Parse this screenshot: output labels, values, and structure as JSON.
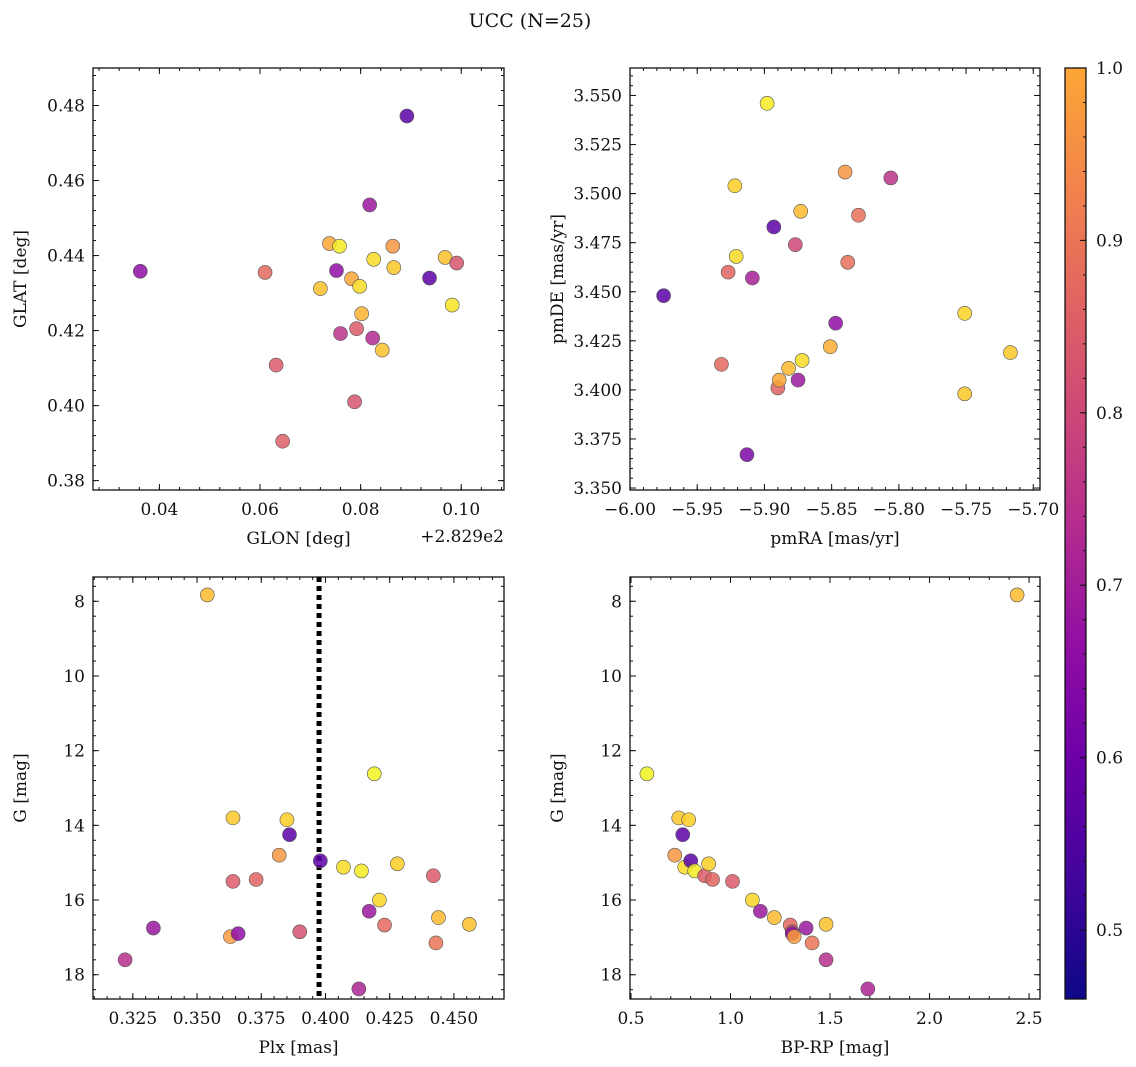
{
  "figure": {
    "title": "UCC (N=25)"
  },
  "colorbar": {
    "range": [
      0.46,
      1.0
    ],
    "ticks": [
      0.5,
      0.6,
      0.7,
      0.8,
      0.9,
      1.0
    ],
    "ticklabels": [
      "0.5",
      "0.6",
      "0.7",
      "0.8",
      "0.9",
      "1.0"
    ],
    "colormap": "plasma"
  },
  "chart_data": [
    {
      "type": "scatter",
      "xlabel": "GLON [deg]",
      "ylabel": "GLAT [deg]",
      "offset_text": "+2.829e2",
      "xlim": [
        0.0268,
        0.1085
      ],
      "ylim": [
        0.3775,
        0.49
      ],
      "xticks": [
        0.04,
        0.06,
        0.08,
        0.1
      ],
      "xticklabels": [
        "0.04",
        "0.06",
        "0.08",
        "0.10"
      ],
      "yticks": [
        0.38,
        0.4,
        0.42,
        0.44,
        0.46,
        0.48
      ],
      "yticklabels": [
        "0.38",
        "0.40",
        "0.42",
        "0.44",
        "0.46",
        "0.48"
      ],
      "points": [
        {
          "x": 0.0362,
          "y": 0.4358,
          "c": 0.58
        },
        {
          "x": 0.061,
          "y": 0.4355,
          "c": 0.77
        },
        {
          "x": 0.0632,
          "y": 0.4108,
          "c": 0.74
        },
        {
          "x": 0.0645,
          "y": 0.3905,
          "c": 0.75
        },
        {
          "x": 0.072,
          "y": 0.4312,
          "c": 0.92
        },
        {
          "x": 0.0738,
          "y": 0.4432,
          "c": 0.88
        },
        {
          "x": 0.0752,
          "y": 0.436,
          "c": 0.58
        },
        {
          "x": 0.0758,
          "y": 0.4425,
          "c": 0.98
        },
        {
          "x": 0.076,
          "y": 0.4192,
          "c": 0.66
        },
        {
          "x": 0.0782,
          "y": 0.4338,
          "c": 0.88
        },
        {
          "x": 0.0788,
          "y": 0.401,
          "c": 0.73
        },
        {
          "x": 0.0792,
          "y": 0.4205,
          "c": 0.74
        },
        {
          "x": 0.0798,
          "y": 0.4318,
          "c": 0.96
        },
        {
          "x": 0.0802,
          "y": 0.4245,
          "c": 0.9
        },
        {
          "x": 0.0818,
          "y": 0.4535,
          "c": 0.6
        },
        {
          "x": 0.0824,
          "y": 0.418,
          "c": 0.64
        },
        {
          "x": 0.0826,
          "y": 0.439,
          "c": 0.96
        },
        {
          "x": 0.0843,
          "y": 0.4148,
          "c": 0.92
        },
        {
          "x": 0.0864,
          "y": 0.4425,
          "c": 0.85
        },
        {
          "x": 0.0866,
          "y": 0.4368,
          "c": 0.93
        },
        {
          "x": 0.0892,
          "y": 0.4772,
          "c": 0.5
        },
        {
          "x": 0.0937,
          "y": 0.434,
          "c": 0.5
        },
        {
          "x": 0.0968,
          "y": 0.4395,
          "c": 0.92
        },
        {
          "x": 0.0982,
          "y": 0.4268,
          "c": 0.97
        },
        {
          "x": 0.0991,
          "y": 0.438,
          "c": 0.73
        }
      ]
    },
    {
      "type": "scatter",
      "xlabel": "pmRA [mas/yr]",
      "ylabel": "pmDE [mas/yr]",
      "xlim": [
        -6.0,
        -5.695
      ],
      "ylim": [
        3.349,
        3.564
      ],
      "xticks": [
        -6.0,
        -5.95,
        -5.9,
        -5.85,
        -5.8,
        -5.75,
        -5.7
      ],
      "xticklabels": [
        "−6.00",
        "−5.95",
        "−5.90",
        "−5.85",
        "−5.80",
        "−5.75",
        "−5.70"
      ],
      "yticks": [
        3.35,
        3.375,
        3.4,
        3.425,
        3.45,
        3.475,
        3.5,
        3.525,
        3.55
      ],
      "yticklabels": [
        "3.350",
        "3.375",
        "3.400",
        "3.425",
        "3.450",
        "3.475",
        "3.500",
        "3.525",
        "3.550"
      ],
      "points": [
        {
          "x": -5.975,
          "y": 3.448,
          "c": 0.5
        },
        {
          "x": -5.932,
          "y": 3.413,
          "c": 0.77
        },
        {
          "x": -5.927,
          "y": 3.46,
          "c": 0.76
        },
        {
          "x": -5.922,
          "y": 3.504,
          "c": 0.94
        },
        {
          "x": -5.921,
          "y": 3.468,
          "c": 0.96
        },
        {
          "x": -5.913,
          "y": 3.367,
          "c": 0.55
        },
        {
          "x": -5.909,
          "y": 3.457,
          "c": 0.62
        },
        {
          "x": -5.898,
          "y": 3.546,
          "c": 0.98
        },
        {
          "x": -5.893,
          "y": 3.483,
          "c": 0.5
        },
        {
          "x": -5.89,
          "y": 3.401,
          "c": 0.76
        },
        {
          "x": -5.889,
          "y": 3.405,
          "c": 0.88
        },
        {
          "x": -5.882,
          "y": 3.411,
          "c": 0.91
        },
        {
          "x": -5.877,
          "y": 3.474,
          "c": 0.7
        },
        {
          "x": -5.875,
          "y": 3.405,
          "c": 0.6
        },
        {
          "x": -5.873,
          "y": 3.491,
          "c": 0.91
        },
        {
          "x": -5.872,
          "y": 3.415,
          "c": 0.96
        },
        {
          "x": -5.851,
          "y": 3.422,
          "c": 0.89
        },
        {
          "x": -5.847,
          "y": 3.434,
          "c": 0.58
        },
        {
          "x": -5.84,
          "y": 3.511,
          "c": 0.85
        },
        {
          "x": -5.838,
          "y": 3.465,
          "c": 0.78
        },
        {
          "x": -5.83,
          "y": 3.489,
          "c": 0.78
        },
        {
          "x": -5.806,
          "y": 3.508,
          "c": 0.66
        },
        {
          "x": -5.751,
          "y": 3.398,
          "c": 0.93
        },
        {
          "x": -5.751,
          "y": 3.439,
          "c": 0.95
        },
        {
          "x": -5.717,
          "y": 3.419,
          "c": 0.93
        }
      ]
    },
    {
      "type": "scatter",
      "xlabel": "Plx [mas]",
      "ylabel": "G [mag]",
      "xlim": [
        0.3095,
        0.4695
      ],
      "ylim": [
        18.65,
        7.35
      ],
      "xticks": [
        0.325,
        0.35,
        0.375,
        0.4,
        0.425,
        0.45
      ],
      "xticklabels": [
        "0.325",
        "0.350",
        "0.375",
        "0.400",
        "0.425",
        "0.450"
      ],
      "yticks": [
        8,
        10,
        12,
        14,
        16,
        18
      ],
      "yticklabels": [
        "8",
        "10",
        "12",
        "14",
        "16",
        "18"
      ],
      "vline": {
        "x": 0.3975,
        "style": "dotted"
      },
      "points": [
        {
          "x": 0.322,
          "y": 17.6,
          "c": 0.65
        },
        {
          "x": 0.333,
          "y": 16.75,
          "c": 0.6
        },
        {
          "x": 0.354,
          "y": 7.83,
          "c": 0.91
        },
        {
          "x": 0.363,
          "y": 16.98,
          "c": 0.86
        },
        {
          "x": 0.364,
          "y": 13.8,
          "c": 0.93
        },
        {
          "x": 0.364,
          "y": 15.5,
          "c": 0.74
        },
        {
          "x": 0.366,
          "y": 16.9,
          "c": 0.58
        },
        {
          "x": 0.373,
          "y": 15.45,
          "c": 0.76
        },
        {
          "x": 0.382,
          "y": 14.8,
          "c": 0.85
        },
        {
          "x": 0.385,
          "y": 13.85,
          "c": 0.94
        },
        {
          "x": 0.386,
          "y": 14.25,
          "c": 0.5
        },
        {
          "x": 0.39,
          "y": 16.85,
          "c": 0.72
        },
        {
          "x": 0.398,
          "y": 14.95,
          "c": 0.5
        },
        {
          "x": 0.407,
          "y": 15.12,
          "c": 0.96
        },
        {
          "x": 0.413,
          "y": 18.38,
          "c": 0.63
        },
        {
          "x": 0.414,
          "y": 15.22,
          "c": 0.98
        },
        {
          "x": 0.417,
          "y": 16.3,
          "c": 0.6
        },
        {
          "x": 0.419,
          "y": 12.62,
          "c": 0.99
        },
        {
          "x": 0.421,
          "y": 16.0,
          "c": 0.95
        },
        {
          "x": 0.423,
          "y": 16.67,
          "c": 0.77
        },
        {
          "x": 0.428,
          "y": 15.03,
          "c": 0.94
        },
        {
          "x": 0.442,
          "y": 15.35,
          "c": 0.74
        },
        {
          "x": 0.443,
          "y": 17.15,
          "c": 0.79
        },
        {
          "x": 0.444,
          "y": 16.47,
          "c": 0.91
        },
        {
          "x": 0.456,
          "y": 16.65,
          "c": 0.92
        }
      ]
    },
    {
      "type": "scatter",
      "xlabel": "BP-RP [mag]",
      "ylabel": "G [mag]",
      "xlim": [
        0.495,
        2.555
      ],
      "ylim": [
        18.65,
        7.35
      ],
      "xticks": [
        0.5,
        1.0,
        1.5,
        2.0,
        2.5
      ],
      "xticklabels": [
        "0.5",
        "1.0",
        "1.5",
        "2.0",
        "2.5"
      ],
      "yticks": [
        8,
        10,
        12,
        14,
        16,
        18
      ],
      "yticklabels": [
        "8",
        "10",
        "12",
        "14",
        "16",
        "18"
      ],
      "points": [
        {
          "x": 0.58,
          "y": 12.62,
          "c": 0.99
        },
        {
          "x": 0.72,
          "y": 14.8,
          "c": 0.85
        },
        {
          "x": 0.74,
          "y": 13.8,
          "c": 0.93
        },
        {
          "x": 0.76,
          "y": 14.25,
          "c": 0.5
        },
        {
          "x": 0.77,
          "y": 15.12,
          "c": 0.96
        },
        {
          "x": 0.79,
          "y": 13.85,
          "c": 0.94
        },
        {
          "x": 0.8,
          "y": 14.95,
          "c": 0.5
        },
        {
          "x": 0.82,
          "y": 15.22,
          "c": 0.98
        },
        {
          "x": 0.87,
          "y": 15.35,
          "c": 0.74
        },
        {
          "x": 0.89,
          "y": 15.03,
          "c": 0.94
        },
        {
          "x": 0.91,
          "y": 15.45,
          "c": 0.76
        },
        {
          "x": 1.01,
          "y": 15.5,
          "c": 0.74
        },
        {
          "x": 1.11,
          "y": 16.0,
          "c": 0.95
        },
        {
          "x": 1.15,
          "y": 16.3,
          "c": 0.6
        },
        {
          "x": 1.22,
          "y": 16.47,
          "c": 0.91
        },
        {
          "x": 1.3,
          "y": 16.67,
          "c": 0.77
        },
        {
          "x": 1.31,
          "y": 16.85,
          "c": 0.72
        },
        {
          "x": 1.31,
          "y": 16.9,
          "c": 0.58
        },
        {
          "x": 1.32,
          "y": 16.98,
          "c": 0.86
        },
        {
          "x": 1.38,
          "y": 16.75,
          "c": 0.6
        },
        {
          "x": 1.41,
          "y": 17.15,
          "c": 0.79
        },
        {
          "x": 1.48,
          "y": 16.65,
          "c": 0.92
        },
        {
          "x": 1.48,
          "y": 17.6,
          "c": 0.65
        },
        {
          "x": 1.69,
          "y": 18.38,
          "c": 0.63
        },
        {
          "x": 2.44,
          "y": 7.83,
          "c": 0.91
        }
      ]
    }
  ]
}
